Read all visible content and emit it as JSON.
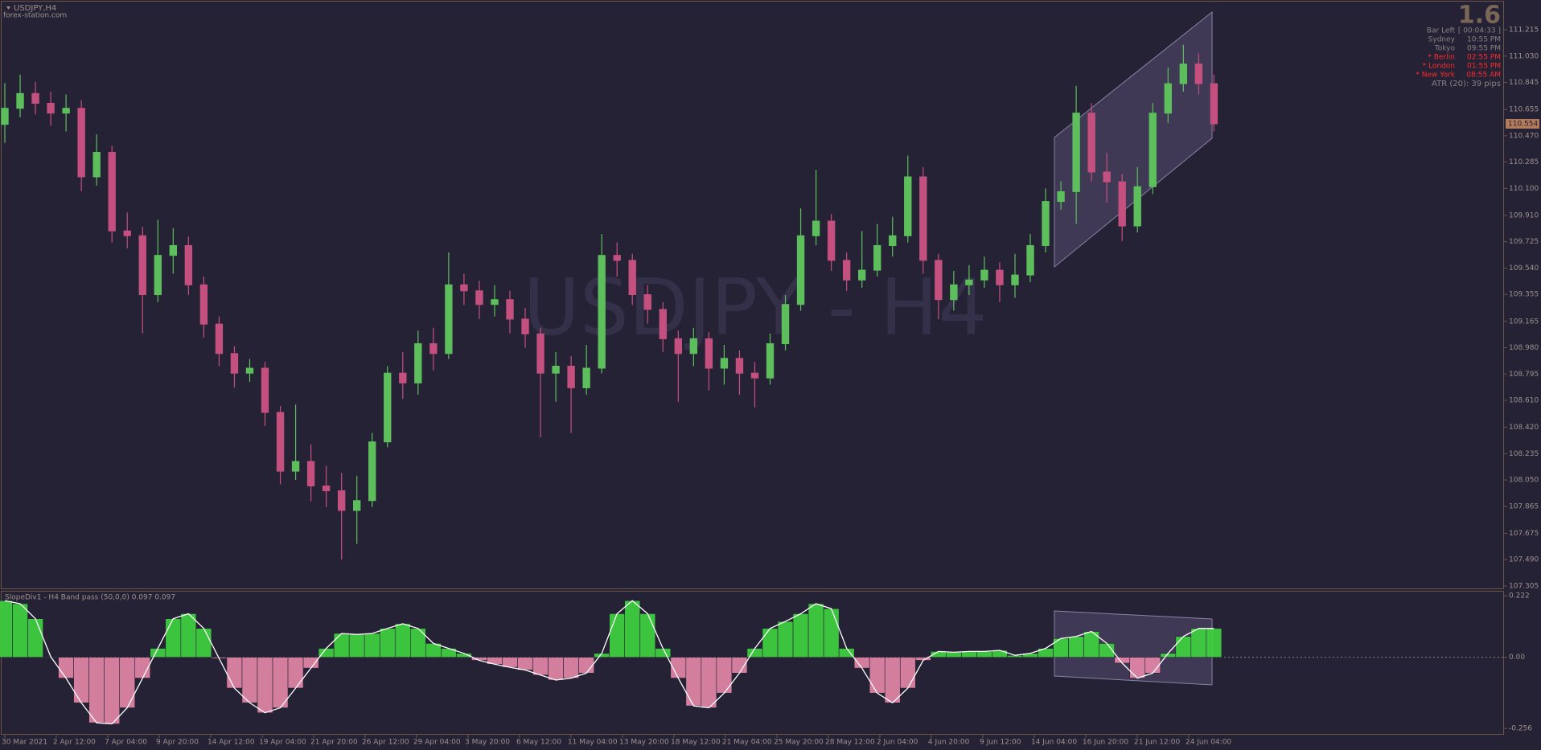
{
  "header": {
    "symbol": "USDJPY,H4",
    "site": "forex-station.com",
    "watermark": "USDJPY - H4"
  },
  "info_panel": {
    "spread": "1.6",
    "rows": [
      {
        "label": "Bar Left",
        "value": "[ 00:04:33 ]",
        "highlight": false
      },
      {
        "label": "Sydney",
        "value": "10:55 PM",
        "highlight": false
      },
      {
        "label": "Tokyo",
        "value": "09:55 PM",
        "highlight": false
      },
      {
        "label": "* Berlin",
        "value": "02:55 PM",
        "highlight": true
      },
      {
        "label": "* London",
        "value": "01:55 PM",
        "highlight": true
      },
      {
        "label": "* New York",
        "value": "08:55 AM",
        "highlight": true
      }
    ],
    "atr": "ATR (20): 39 pips"
  },
  "chart_data": [
    {
      "type": "candlestick",
      "up_color": "#5cbf5c",
      "down_color": "#c4507f",
      "open": [
        110.55,
        110.663,
        110.767,
        110.698,
        110.629,
        110.663,
        110.181,
        110.353,
        109.801,
        109.767,
        109.353,
        109.629,
        109.698,
        109.422,
        109.146,
        108.939,
        108.801,
        108.836,
        108.525,
        108.112,
        108.18,
        108.008,
        107.974,
        107.836,
        107.905,
        108.318,
        108.801,
        108.732,
        109.008,
        108.939,
        109.422,
        109.38,
        109.284,
        109.318,
        109.181,
        109.077,
        108.801,
        108.85,
        108.698,
        108.836,
        109.629,
        109.594,
        109.353,
        109.249,
        109.043,
        108.939,
        109.043,
        108.836,
        108.905,
        108.801,
        108.767,
        109.008,
        109.284,
        109.767,
        109.87,
        109.594,
        109.456,
        109.525,
        109.698,
        109.767,
        110.181,
        109.594,
        109.318,
        109.422,
        109.456,
        109.525,
        109.422,
        109.491,
        109.698,
        110.008,
        110.077,
        110.629,
        110.215,
        110.146,
        109.836,
        110.112,
        110.629,
        110.836,
        110.974,
        110.836
      ],
      "high": [
        110.84,
        110.9,
        110.85,
        110.78,
        110.76,
        110.72,
        110.48,
        110.4,
        109.93,
        109.83,
        109.88,
        109.82,
        109.76,
        109.48,
        109.2,
        108.99,
        108.9,
        108.88,
        108.57,
        108.58,
        108.3,
        108.15,
        108.1,
        108.08,
        108.38,
        108.85,
        108.95,
        109.1,
        109.12,
        109.65,
        109.5,
        109.45,
        109.42,
        109.38,
        109.26,
        109.12,
        108.95,
        108.92,
        109.0,
        109.78,
        109.72,
        109.64,
        109.42,
        109.3,
        109.1,
        109.12,
        109.09,
        109.0,
        108.96,
        108.88,
        109.08,
        109.35,
        109.96,
        110.23,
        109.92,
        109.65,
        109.8,
        109.85,
        109.9,
        110.33,
        110.25,
        109.64,
        109.52,
        109.56,
        109.62,
        109.58,
        109.64,
        109.78,
        110.1,
        110.15,
        110.82,
        110.7,
        110.35,
        110.2,
        110.25,
        110.7,
        110.95,
        111.11,
        111.05,
        110.9
      ],
      "low": [
        110.42,
        110.6,
        110.62,
        110.54,
        110.5,
        110.08,
        110.12,
        109.72,
        109.68,
        109.08,
        109.3,
        109.5,
        109.35,
        109.05,
        108.85,
        108.7,
        108.74,
        108.43,
        108.02,
        108.05,
        107.9,
        107.86,
        107.49,
        107.6,
        107.86,
        108.28,
        108.62,
        108.65,
        108.82,
        108.9,
        109.28,
        109.18,
        109.2,
        109.08,
        108.98,
        108.35,
        108.6,
        108.38,
        108.65,
        108.8,
        109.48,
        109.28,
        109.15,
        108.95,
        108.6,
        108.85,
        108.68,
        108.72,
        108.65,
        108.56,
        108.72,
        108.96,
        109.24,
        109.7,
        109.52,
        109.38,
        109.4,
        109.48,
        109.62,
        109.72,
        109.5,
        109.18,
        109.24,
        109.35,
        109.4,
        109.3,
        109.33,
        109.44,
        109.65,
        109.95,
        109.85,
        110.15,
        110.0,
        109.73,
        109.79,
        110.06,
        110.56,
        110.78,
        110.76,
        110.5
      ],
      "close": [
        110.663,
        110.767,
        110.698,
        110.629,
        110.663,
        110.181,
        110.353,
        109.801,
        109.767,
        109.353,
        109.629,
        109.698,
        109.422,
        109.146,
        108.939,
        108.801,
        108.836,
        108.525,
        108.112,
        108.18,
        108.008,
        107.974,
        107.836,
        107.905,
        108.318,
        108.801,
        108.732,
        109.008,
        108.939,
        109.422,
        109.38,
        109.284,
        109.318,
        109.181,
        109.077,
        108.801,
        108.85,
        108.698,
        108.836,
        109.629,
        109.594,
        109.353,
        109.249,
        109.043,
        108.939,
        109.043,
        108.836,
        108.905,
        108.801,
        108.767,
        109.008,
        109.284,
        109.767,
        109.87,
        109.594,
        109.456,
        109.525,
        109.698,
        109.767,
        110.181,
        109.594,
        109.318,
        109.422,
        109.456,
        109.525,
        109.422,
        109.491,
        109.698,
        110.008,
        110.077,
        110.629,
        110.215,
        110.146,
        109.836,
        110.112,
        110.629,
        110.836,
        110.974,
        110.836,
        110.554
      ],
      "xlim": [
        -0.21,
        97.95
      ],
      "ylim": [
        107.282,
        111.413
      ],
      "yticks": [
        111.215,
        {
          "value": 111.03,
          "label": "111.030"
        },
        110.845,
        110.655,
        {
          "value": 110.47,
          "label": "110.470"
        },
        110.285,
        {
          "value": 110.1,
          "label": "110.100"
        },
        {
          "value": 109.91,
          "label": "109.910"
        },
        109.725,
        {
          "value": 109.54,
          "label": "109.540"
        },
        109.355,
        109.165,
        {
          "value": 108.98,
          "label": "108.980"
        },
        108.795,
        {
          "value": 108.61,
          "label": "108.610"
        },
        {
          "value": 108.42,
          "label": "108.420"
        },
        108.235,
        {
          "value": 108.05,
          "label": "108.050"
        },
        107.865,
        107.675,
        {
          "value": 107.49,
          "label": "107.490"
        },
        107.305
      ],
      "xticks": [
        {
          "value": 0,
          "label": "30 Mar 2021"
        },
        {
          "value": 3.36,
          "label": "2 Apr 12:00"
        },
        {
          "value": 6.73,
          "label": "7 Apr 04:00"
        },
        {
          "value": 10.09,
          "label": "9 Apr 20:00"
        },
        {
          "value": 13.45,
          "label": "14 Apr 12:00"
        },
        {
          "value": 16.82,
          "label": "19 Apr 04:00"
        },
        {
          "value": 20.18,
          "label": "21 Apr 20:00"
        },
        {
          "value": 23.54,
          "label": "26 Apr 12:00"
        },
        {
          "value": 26.9,
          "label": "29 Apr 04:00"
        },
        {
          "value": 30.27,
          "label": "3 May 20:00"
        },
        {
          "value": 33.63,
          "label": "6 May 12:00"
        },
        {
          "value": 36.99,
          "label": "11 May 04:00"
        },
        {
          "value": 40.36,
          "label": "13 May 20:00"
        },
        {
          "value": 43.72,
          "label": "18 May 12:00"
        },
        {
          "value": 47.08,
          "label": "21 May 04:00"
        },
        {
          "value": 50.45,
          "label": "25 May 20:00"
        },
        {
          "value": 53.81,
          "label": "28 May 12:00"
        },
        {
          "value": 57.17,
          "label": "2 Jun 04:00"
        },
        {
          "value": 60.53,
          "label": "4 Jun 20:00"
        },
        {
          "value": 63.9,
          "label": "9 Jun 12:00"
        },
        {
          "value": 67.26,
          "label": "14 Jun 04:00"
        },
        {
          "value": 70.62,
          "label": "16 Jun 20:00"
        },
        {
          "value": 73.99,
          "label": "21 Jun 12:00"
        },
        {
          "value": 77.35,
          "label": "24 Jun 04:00"
        }
      ]
    },
    {
      "type": "oscillator",
      "title": "SlopeDiv1 - H4 Band pass (50,0,0) 0.097 0.097",
      "positive_color": "#3fd63f",
      "negative_color": "#e888aa",
      "line_color": "#ffffff",
      "values": [
        0.204,
        0.193,
        0.139,
        0.002,
        -0.075,
        -0.164,
        -0.236,
        -0.24,
        -0.182,
        -0.075,
        0.032,
        0.139,
        0.157,
        0.104,
        -0.004,
        -0.111,
        -0.164,
        -0.2,
        -0.182,
        -0.111,
        -0.039,
        0.032,
        0.086,
        0.082,
        0.086,
        0.104,
        0.121,
        0.104,
        0.05,
        0.032,
        0.014,
        -0.011,
        -0.025,
        -0.036,
        -0.046,
        -0.064,
        -0.082,
        -0.075,
        -0.057,
        0.014,
        0.157,
        0.204,
        0.157,
        0.032,
        -0.075,
        -0.175,
        -0.182,
        -0.129,
        -0.057,
        0.032,
        0.104,
        0.129,
        0.157,
        0.193,
        0.175,
        0.032,
        -0.039,
        -0.129,
        -0.164,
        -0.111,
        -0.011,
        0.021,
        0.018,
        0.021,
        0.021,
        0.025,
        0.007,
        0.014,
        0.032,
        0.068,
        0.075,
        0.093,
        0.05,
        -0.021,
        -0.075,
        -0.057,
        0.014,
        0.075,
        0.104,
        0.104
      ],
      "xlim": [
        -0.21,
        97.95
      ],
      "ylim": [
        -0.279,
        0.2365
      ],
      "yticks": [
        0.222,
        {
          "value": 0,
          "label": "0.00"
        },
        -0.256
      ]
    }
  ]
}
